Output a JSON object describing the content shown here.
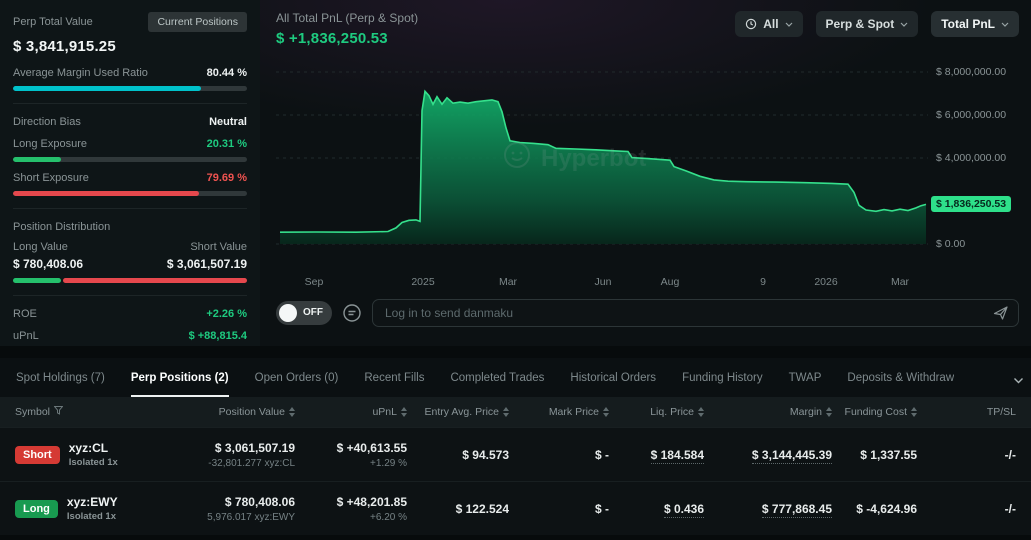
{
  "colors": {
    "teal": "#00c2cb",
    "green": "#1ecb80",
    "red": "#ef5350",
    "chart_line": "#35e08c",
    "badge_green": "#2ee08a",
    "short_badge": "#d53a34",
    "long_badge": "#189a50"
  },
  "sidebar": {
    "title": "Perp Total Value",
    "current_positions_btn": "Current Positions",
    "total_value": "$ 3,841,915.25",
    "margin_ratio_label": "Average Margin Used Ratio",
    "margin_ratio": "80.44 %",
    "margin_ratio_pct": 80.44,
    "direction_bias_label": "Direction Bias",
    "direction_bias_value": "Neutral",
    "long_exposure_label": "Long Exposure",
    "long_exposure": "20.31 %",
    "long_exposure_pct": 20.31,
    "short_exposure_label": "Short Exposure",
    "short_exposure": "79.69 %",
    "short_exposure_pct": 79.69,
    "position_distribution_label": "Position Distribution",
    "long_value_label": "Long Value",
    "short_value_label": "Short Value",
    "long_value": "$ 780,408.06",
    "short_value": "$ 3,061,507.19",
    "long_pct": 20.31,
    "short_pct": 79.69,
    "roe_label": "ROE",
    "roe_value": "+2.26 %",
    "upnl_label": "uPnL",
    "upnl_value": "$ +88,815.4"
  },
  "chart": {
    "title": "All Total PnL (Perp & Spot)",
    "value": "$ +1,836,250.53",
    "controls": {
      "range": "All",
      "scope": "Perp & Spot",
      "metric": "Total PnL"
    },
    "watermark": "Hyperbot",
    "badge": "$ 1,836,250.53",
    "danmaku": {
      "toggle": "OFF",
      "placeholder": "Log in to send danmaku"
    }
  },
  "chart_data": {
    "type": "area",
    "title": "All Total PnL (Perp & Spot)",
    "unit": "USD millions",
    "ylim": [
      0,
      8.8
    ],
    "current_value": 1.836,
    "y_ticks": [
      {
        "label": "$ 8,000,000.00",
        "value": 8
      },
      {
        "label": "$ 6,000,000.00",
        "value": 6
      },
      {
        "label": "$ 4,000,000.00",
        "value": 4
      },
      {
        "label": "$ 0.00",
        "value": 0
      }
    ],
    "x_ticks": [
      {
        "label": "Sep",
        "x": 38
      },
      {
        "label": "2025",
        "x": 147
      },
      {
        "label": "Mar",
        "x": 232
      },
      {
        "label": "Jun",
        "x": 327
      },
      {
        "label": "Aug",
        "x": 394
      },
      {
        "label": "9",
        "x": 487
      },
      {
        "label": "2026",
        "x": 550
      },
      {
        "label": "Mar",
        "x": 624
      }
    ],
    "points": [
      [
        4,
        0.55
      ],
      [
        40,
        0.56
      ],
      [
        80,
        0.55
      ],
      [
        112,
        0.58
      ],
      [
        120,
        0.75
      ],
      [
        126,
        1.0
      ],
      [
        133,
        1.1
      ],
      [
        140,
        1.12
      ],
      [
        144,
        1.05
      ],
      [
        146,
        6.2
      ],
      [
        149,
        7.1
      ],
      [
        153,
        6.9
      ],
      [
        157,
        6.5
      ],
      [
        161,
        6.85
      ],
      [
        166,
        6.5
      ],
      [
        171,
        6.8
      ],
      [
        177,
        6.55
      ],
      [
        184,
        6.6
      ],
      [
        192,
        6.55
      ],
      [
        200,
        6.62
      ],
      [
        208,
        6.66
      ],
      [
        216,
        6.7
      ],
      [
        222,
        6.62
      ],
      [
        226,
        6.15
      ],
      [
        230,
        5.4
      ],
      [
        234,
        4.8
      ],
      [
        244,
        4.72
      ],
      [
        258,
        4.68
      ],
      [
        272,
        4.62
      ],
      [
        280,
        4.45
      ],
      [
        300,
        4.42
      ],
      [
        320,
        4.38
      ],
      [
        340,
        4.33
      ],
      [
        352,
        4.3
      ],
      [
        356,
        4.02
      ],
      [
        370,
        3.98
      ],
      [
        382,
        3.94
      ],
      [
        394,
        3.9
      ],
      [
        398,
        3.6
      ],
      [
        410,
        3.4
      ],
      [
        424,
        3.15
      ],
      [
        438,
        2.98
      ],
      [
        452,
        2.92
      ],
      [
        470,
        2.9
      ],
      [
        500,
        2.88
      ],
      [
        530,
        2.85
      ],
      [
        556,
        2.82
      ],
      [
        572,
        2.78
      ],
      [
        578,
        2.4
      ],
      [
        583,
        1.8
      ],
      [
        590,
        1.58
      ],
      [
        600,
        1.52
      ],
      [
        608,
        1.6
      ],
      [
        616,
        1.54
      ],
      [
        624,
        1.62
      ],
      [
        632,
        1.56
      ],
      [
        640,
        1.68
      ],
      [
        645,
        1.78
      ],
      [
        650,
        1.84
      ]
    ]
  },
  "tabs": [
    {
      "label": "Spot Holdings (7)",
      "active": false
    },
    {
      "label": "Perp Positions (2)",
      "active": true
    },
    {
      "label": "Open Orders (0)",
      "active": false
    },
    {
      "label": "Recent Fills",
      "active": false
    },
    {
      "label": "Completed Trades",
      "active": false
    },
    {
      "label": "Historical Orders",
      "active": false
    },
    {
      "label": "Funding History",
      "active": false
    },
    {
      "label": "TWAP",
      "active": false
    },
    {
      "label": "Deposits & Withdraw",
      "active": false
    }
  ],
  "table": {
    "columns": [
      {
        "label": "Symbol",
        "icon": "filter"
      },
      {
        "label": "Position Value",
        "icon": "sort"
      },
      {
        "label": "uPnL",
        "icon": "sort"
      },
      {
        "label": "Entry Avg. Price",
        "icon": "sort"
      },
      {
        "label": "Mark Price",
        "icon": "sort"
      },
      {
        "label": "Liq. Price",
        "icon": "sort"
      },
      {
        "label": "Margin",
        "icon": "sort"
      },
      {
        "label": "Funding Cost",
        "icon": "sort"
      },
      {
        "label": "TP/SL",
        "icon": null
      }
    ],
    "rows": [
      {
        "side": "Short",
        "symbol": "xyz:CL",
        "leverage": "Isolated 1x",
        "position_value": "$ 3,061,507.19",
        "position_size": "-32,801.277 xyz:CL",
        "upnl": "$ +40,613.55",
        "upnl_pct": "+1.29 %",
        "entry_price": "$ 94.573",
        "mark_price": "$ -",
        "liq_price": "$ 184.584",
        "margin": "$ 3,144,445.39",
        "funding_cost": "$ 1,337.55",
        "tpsl": "-/-"
      },
      {
        "side": "Long",
        "symbol": "xyz:EWY",
        "leverage": "Isolated 1x",
        "position_value": "$ 780,408.06",
        "position_size": "5,976.017 xyz:EWY",
        "upnl": "$ +48,201.85",
        "upnl_pct": "+6.20 %",
        "entry_price": "$ 122.524",
        "mark_price": "$ -",
        "liq_price": "$ 0.436",
        "margin": "$ 777,868.45",
        "funding_cost": "$ -4,624.96",
        "tpsl": "-/-"
      }
    ]
  }
}
